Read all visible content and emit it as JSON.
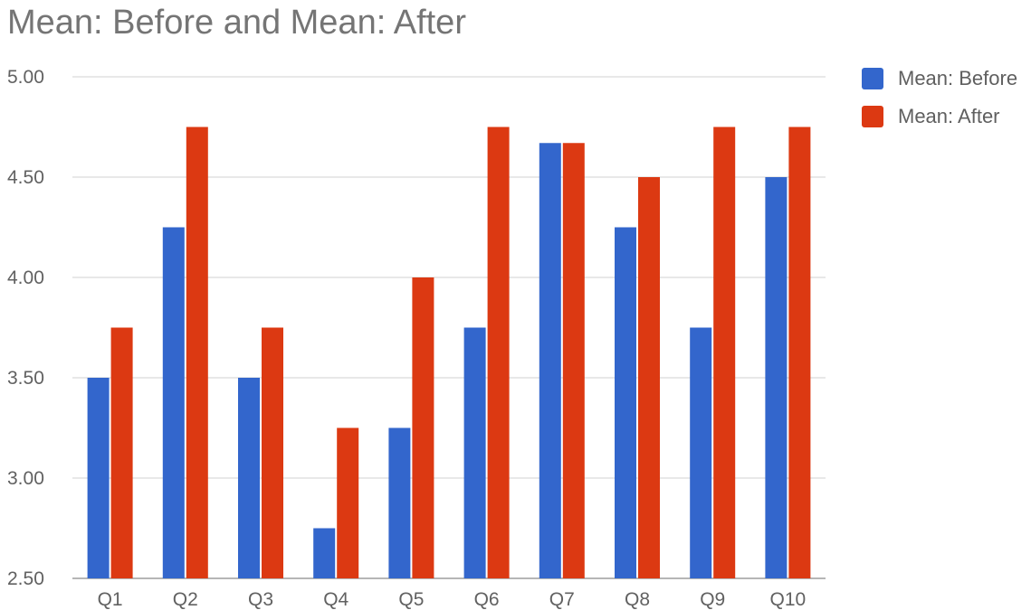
{
  "chart_data": {
    "type": "bar",
    "title": "Mean: Before and Mean: After",
    "xlabel": "",
    "ylabel": "",
    "categories": [
      "Q1",
      "Q2",
      "Q3",
      "Q4",
      "Q5",
      "Q6",
      "Q7",
      "Q8",
      "Q9",
      "Q10"
    ],
    "series": [
      {
        "name": "Mean: Before",
        "color": "#3366cc",
        "values": [
          3.5,
          4.25,
          3.5,
          2.75,
          3.25,
          3.75,
          4.67,
          4.25,
          3.75,
          4.5
        ]
      },
      {
        "name": "Mean: After",
        "color": "#dc3912",
        "values": [
          3.75,
          4.75,
          3.75,
          3.25,
          4.0,
          4.75,
          4.67,
          4.5,
          4.75,
          4.75
        ]
      }
    ],
    "ylim": [
      2.5,
      5.0
    ],
    "yticks": [
      "2.50",
      "3.00",
      "3.50",
      "4.00",
      "4.50",
      "5.00"
    ],
    "grid": true,
    "legend_position": "right"
  }
}
